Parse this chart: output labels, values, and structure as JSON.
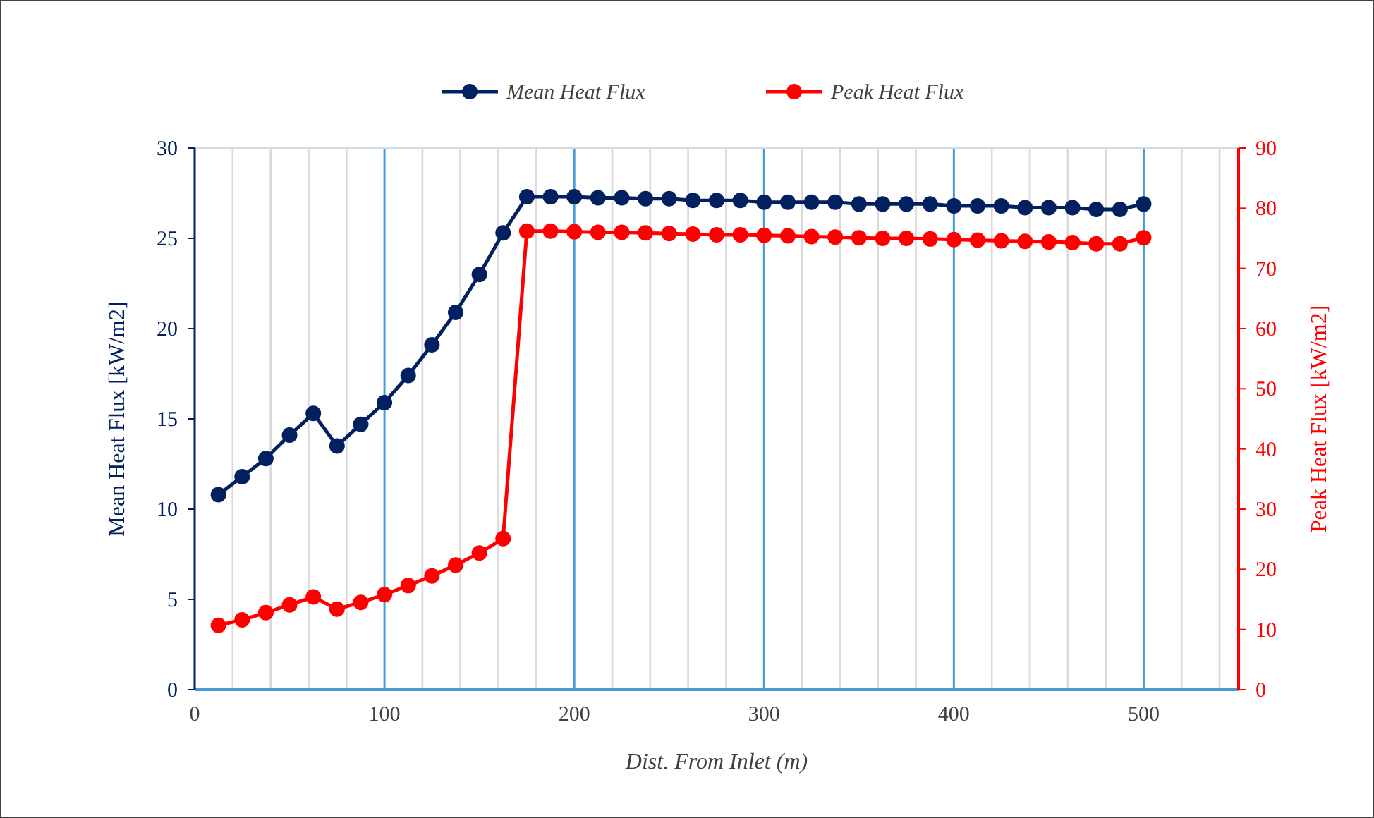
{
  "chart_data": {
    "type": "line",
    "xlabel": "Dist. From Inlet (m)",
    "ylabel": "Mean Heat Flux [kW/m2]",
    "y2label": "Peak Heat Flux [kW/m2]",
    "x": [
      12.5,
      25,
      37.5,
      50,
      62.5,
      75,
      87.5,
      100,
      112.5,
      125,
      137.5,
      150,
      162.5,
      175,
      187.5,
      200,
      212.5,
      225,
      237.5,
      250,
      262.5,
      275,
      287.5,
      300,
      312.5,
      325,
      337.5,
      350,
      362.5,
      375,
      387.5,
      400,
      412.5,
      425,
      437.5,
      450,
      462.5,
      475,
      487.5,
      500
    ],
    "series": [
      {
        "name": "Mean Heat Flux",
        "color": "#002060",
        "values": [
          10.8,
          11.8,
          12.8,
          14.1,
          15.3,
          13.5,
          14.7,
          15.9,
          17.4,
          19.1,
          20.9,
          23.0,
          25.3,
          27.3,
          27.3,
          27.3,
          27.25,
          27.25,
          27.2,
          27.2,
          27.1,
          27.1,
          27.1,
          27.0,
          27.0,
          27.0,
          27.0,
          26.9,
          26.9,
          26.9,
          26.9,
          26.8,
          26.8,
          26.8,
          26.7,
          26.7,
          26.7,
          26.6,
          26.6,
          26.9
        ]
      },
      {
        "name": "Peak Heat Flux",
        "color": "#ff0000",
        "axis": "y2",
        "values": [
          10.7,
          11.6,
          12.8,
          14.1,
          15.4,
          13.4,
          14.5,
          15.8,
          17.3,
          18.9,
          20.7,
          22.7,
          25.1,
          76.2,
          76.2,
          76.1,
          76.0,
          76.0,
          75.9,
          75.8,
          75.7,
          75.6,
          75.6,
          75.5,
          75.4,
          75.3,
          75.2,
          75.1,
          75.0,
          75.0,
          74.9,
          74.8,
          74.7,
          74.6,
          74.5,
          74.4,
          74.3,
          74.1,
          74.1,
          75.1
        ]
      }
    ],
    "xlim": [
      0,
      550
    ],
    "xticks": [
      0,
      {
        "value": 20,
        "label": null
      },
      {
        "value": 40,
        "label": null
      },
      {
        "value": 60,
        "label": null
      },
      {
        "value": 80,
        "label": null
      },
      100,
      {
        "value": 120,
        "label": null
      },
      {
        "value": 140,
        "label": null
      },
      {
        "value": 160,
        "label": null
      },
      {
        "value": 180,
        "label": null
      },
      200,
      {
        "value": 220,
        "label": null
      },
      {
        "value": 240,
        "label": null
      },
      {
        "value": 260,
        "label": null
      },
      {
        "value": 280,
        "label": null
      },
      300,
      {
        "value": 320,
        "label": null
      },
      {
        "value": 340,
        "label": null
      },
      {
        "value": 360,
        "label": null
      },
      {
        "value": 380,
        "label": null
      },
      400,
      {
        "value": 420,
        "label": null
      },
      {
        "value": 440,
        "label": null
      },
      {
        "value": 460,
        "label": null
      },
      {
        "value": 480,
        "label": null
      },
      500,
      {
        "value": 520,
        "label": null
      },
      {
        "value": 540,
        "label": null
      }
    ],
    "ylim": [
      0,
      30
    ],
    "yticks": [
      0,
      5,
      10,
      15,
      20,
      25,
      30
    ],
    "y2lim": [
      0,
      90
    ],
    "y2ticks": [
      0,
      10,
      20,
      30,
      40,
      50,
      60,
      70,
      80,
      90
    ],
    "grid": "x",
    "legend": "top",
    "marker": "circle",
    "line_style": "solid"
  }
}
